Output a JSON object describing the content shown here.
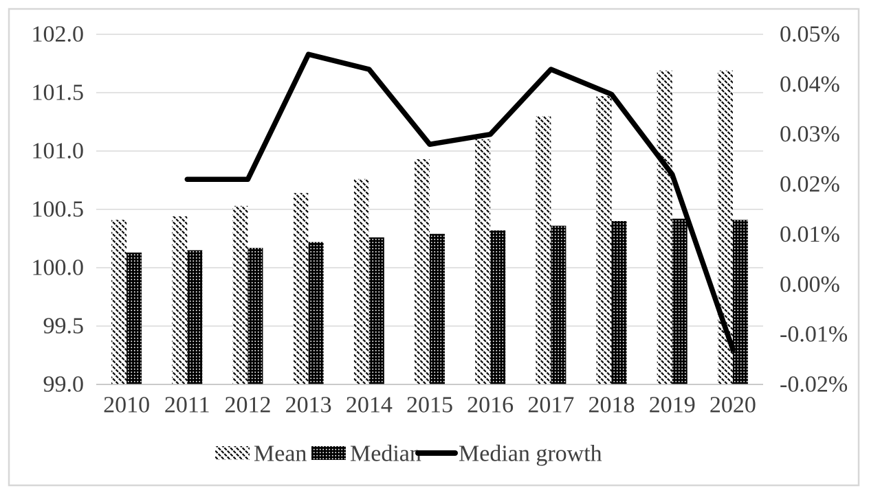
{
  "figure": {
    "title": "",
    "border_color": "#d7d7d7",
    "background": "#ffffff",
    "text_color": "#404040",
    "gridline_color": "#d9d9d9",
    "axisline_color": "#bfbfbf",
    "line_color": "#000000"
  },
  "chart_data": {
    "type": "combo",
    "subtypes": [
      "bar",
      "bar",
      "line"
    ],
    "categories": [
      "2010",
      "2011",
      "2012",
      "2013",
      "2014",
      "2015",
      "2016",
      "2017",
      "2018",
      "2019",
      "2020"
    ],
    "series": [
      {
        "name": "Mean",
        "type": "bar",
        "axis": "left",
        "pattern": "diagonal-stripe",
        "values": [
          100.41,
          100.44,
          100.53,
          100.64,
          100.76,
          100.93,
          101.1,
          101.3,
          101.47,
          101.69,
          101.69
        ]
      },
      {
        "name": "Median",
        "type": "bar",
        "axis": "left",
        "pattern": "checker-dot",
        "values": [
          100.13,
          100.15,
          100.17,
          100.22,
          100.26,
          100.29,
          100.32,
          100.36,
          100.4,
          100.42,
          100.41
        ]
      },
      {
        "name": "Median growth",
        "type": "line",
        "axis": "right",
        "color": "#000000",
        "unit": "%",
        "values": [
          null,
          0.021,
          0.021,
          0.046,
          0.043,
          0.028,
          0.03,
          0.043,
          0.038,
          0.022,
          -0.013
        ]
      }
    ],
    "left_axis": {
      "min": 99.0,
      "max": 102.0,
      "step": 0.5,
      "tick_labels": [
        "102.0",
        "101.5",
        "101.0",
        "100.5",
        "100.0",
        "99.5",
        "99.0"
      ]
    },
    "right_axis": {
      "min": -0.02,
      "max": 0.05,
      "step": 0.01,
      "tick_labels": [
        "0.05%",
        "0.04%",
        "0.03%",
        "0.02%",
        "0.01%",
        "0.00%",
        "-0.01%",
        "-0.02%"
      ]
    },
    "xlabel": "",
    "ylabel": "",
    "grid": true,
    "legend": {
      "position": "bottom",
      "entries": [
        "Mean",
        "Median",
        "Median growth"
      ]
    }
  }
}
